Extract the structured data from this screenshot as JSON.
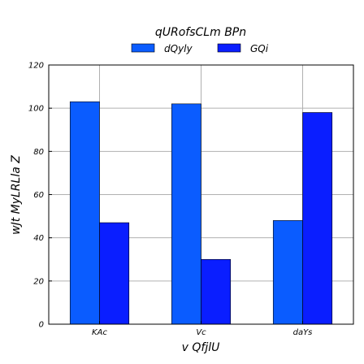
{
  "chart_data": {
    "type": "bar",
    "legend_title": "qURofsCLm BPn",
    "legend_position": "top-center",
    "xlabel": "v QfjlU",
    "ylabel": "wJt MyLRLla Z",
    "categories": [
      "KAc",
      "Vc",
      "daYs"
    ],
    "series": [
      {
        "name": "dQyly",
        "color": "#0a5cff",
        "values": [
          103,
          102,
          48
        ]
      },
      {
        "name": "GQi",
        "color": "#0a1eff",
        "values": [
          47,
          30,
          98
        ]
      }
    ],
    "ylim": [
      0,
      120
    ],
    "yticks": [
      0,
      20,
      40,
      60,
      80,
      100,
      120
    ],
    "grid": true
  }
}
